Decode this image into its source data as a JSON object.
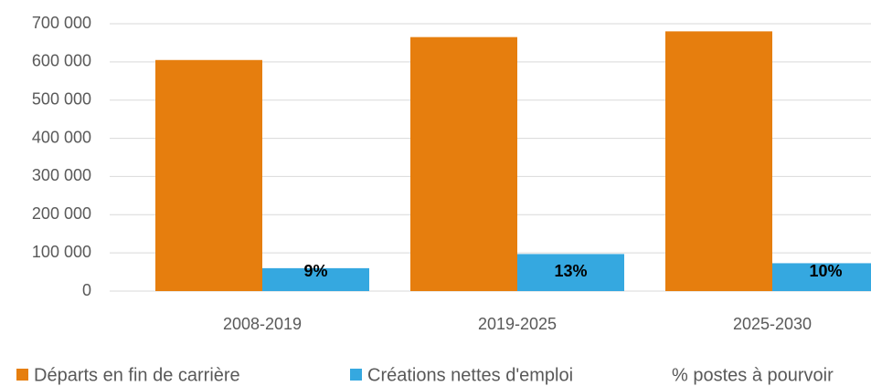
{
  "chart_data": {
    "type": "bar",
    "categories": [
      "2008-2019",
      "2019-2025",
      "2025-2030"
    ],
    "series": [
      {
        "name": "Départs en fin de carrière",
        "color": "#e67e0e",
        "values": [
          605000,
          665000,
          680000
        ]
      },
      {
        "name": "Créations nettes d'emploi",
        "color": "#35a8e0",
        "values": [
          60000,
          97000,
          73000
        ]
      },
      {
        "name": "% postes à pourvoir",
        "values": [
          9,
          13,
          10
        ],
        "value_labels": [
          "9%",
          "13%",
          "10%"
        ]
      }
    ],
    "ylim": [
      0,
      700000
    ],
    "yticks": [
      0,
      {
        "value": 100000,
        "label": "100 000"
      },
      {
        "value": 200000,
        "label": "200 000"
      },
      {
        "value": 300000,
        "label": "300 000"
      },
      {
        "value": 400000,
        "label": "400 000"
      },
      {
        "value": 500000,
        "label": "500 000"
      },
      {
        "value": 600000,
        "label": "600 000"
      },
      {
        "value": 700000,
        "label": "700 000"
      }
    ],
    "grid": true
  }
}
